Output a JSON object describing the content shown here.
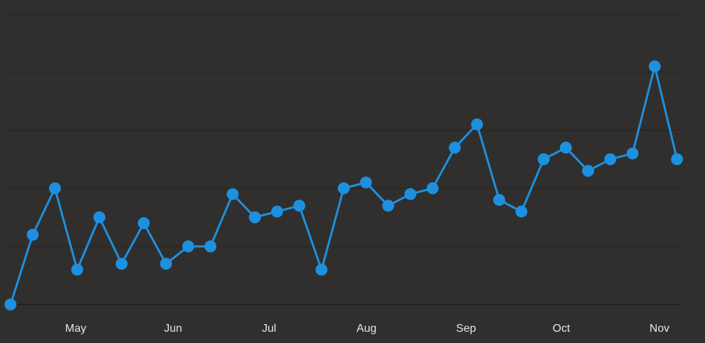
{
  "chart_data": {
    "type": "line",
    "title": "",
    "xlabel": "",
    "ylabel": "",
    "x_tick_labels": [
      "May",
      "Jun",
      "Jul",
      "Aug",
      "Sep",
      "Oct",
      "Nov"
    ],
    "ylim": [
      0,
      50
    ],
    "grid": true,
    "show_y_tick_labels": false,
    "series": [
      {
        "color": "#1e90e0",
        "marker": "circle",
        "values": [
          0,
          12,
          20,
          6,
          15,
          7,
          14,
          7,
          10,
          10,
          19,
          15,
          16,
          17,
          6,
          20,
          21,
          17,
          19,
          20,
          27,
          31,
          18,
          16,
          25,
          27,
          23,
          25,
          26,
          41,
          25
        ]
      }
    ]
  }
}
